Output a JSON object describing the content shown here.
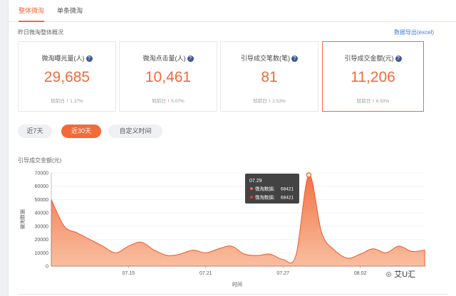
{
  "tabs": [
    {
      "label": "整体微淘",
      "active": true
    },
    {
      "label": "单条微淘",
      "active": false
    }
  ],
  "overview": {
    "title": "昨日微淘整体概况",
    "export_label": "数据导出(excel)"
  },
  "cards": [
    {
      "label": "微淘曝光量(人)",
      "value": "29,685",
      "compare_label": "较前日",
      "change": "1.37%",
      "highlight": false
    },
    {
      "label": "微淘点击量(人)",
      "value": "10,461",
      "compare_label": "较前日",
      "change": "5.07%",
      "highlight": false
    },
    {
      "label": "引导成交笔数(笔)",
      "value": "81",
      "compare_label": "较前日",
      "change": "2.53%",
      "highlight": false
    },
    {
      "label": "引导成交金额(元)",
      "value": "11,206",
      "compare_label": "较前日",
      "change": "6.50%",
      "highlight": true
    }
  ],
  "ranges": [
    {
      "label": "近7天",
      "active": false
    },
    {
      "label": "近30天",
      "active": true
    },
    {
      "label": "自定义时间",
      "active": false
    }
  ],
  "chart_title": "引导成交金额(元)",
  "tooltip": {
    "date": "07.29",
    "rows": [
      {
        "label": "微淘数据:",
        "value": "68421"
      },
      {
        "label": "微淘数据:",
        "value": "68421"
      }
    ]
  },
  "watermark": "艾U汇",
  "colors": {
    "accent": "#f26a3a",
    "link": "#3b7bd6",
    "up_arrow": "#e53935"
  },
  "chart_data": {
    "type": "area",
    "title": "",
    "xlabel": "时间",
    "ylabel": "微淘数据",
    "ylim": [
      0,
      70000
    ],
    "yticks": [
      0,
      10000,
      20000,
      30000,
      40000,
      50000,
      60000,
      70000
    ],
    "xticks": [
      "07.15",
      "07.21",
      "07.27",
      "08.02"
    ],
    "grid": true,
    "x": [
      "07.09",
      "07.10",
      "07.11",
      "07.12",
      "07.13",
      "07.14",
      "07.15",
      "07.16",
      "07.17",
      "07.18",
      "07.19",
      "07.20",
      "07.21",
      "07.22",
      "07.23",
      "07.24",
      "07.25",
      "07.26",
      "07.27",
      "07.28",
      "07.29",
      "07.30",
      "07.31",
      "08.01",
      "08.02",
      "08.03",
      "08.04",
      "08.05",
      "08.06",
      "08.07"
    ],
    "series": [
      {
        "name": "",
        "values": [
          50000,
          30000,
          25000,
          20000,
          15000,
          10000,
          15000,
          18000,
          12000,
          8000,
          9000,
          12000,
          10000,
          13000,
          15000,
          9000,
          8000,
          9000,
          5000,
          8000,
          68421,
          25000,
          12000,
          6000,
          9000,
          13000,
          10000,
          15000,
          11000,
          12000
        ]
      }
    ]
  }
}
